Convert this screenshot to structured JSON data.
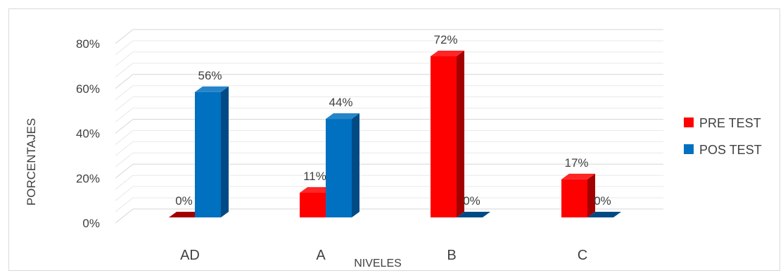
{
  "chart_data": {
    "type": "bar",
    "title": "",
    "xlabel": "NIVELES",
    "ylabel": "PORCENTAJES",
    "categories": [
      "AD",
      "A",
      "B",
      "C"
    ],
    "ylim": [
      0,
      80
    ],
    "yticks": [
      "0%",
      "20%",
      "40%",
      "60%",
      "80%"
    ],
    "ytick_values": [
      0,
      20,
      40,
      60,
      80
    ],
    "grid": true,
    "legend_position": "right",
    "style": "3d-column",
    "series": [
      {
        "name": "PRE TEST",
        "values": [
          0,
          11,
          72,
          17
        ],
        "labels": [
          "0%",
          "11%",
          "72%",
          "17%"
        ],
        "color": "#ff0000",
        "side_color": "#a30000"
      },
      {
        "name": "POS TEST",
        "values": [
          56,
          44,
          0,
          0
        ],
        "labels": [
          "56%",
          "44%",
          "0%",
          "0%"
        ],
        "color": "#0070c0",
        "side_color": "#004b85"
      }
    ]
  }
}
